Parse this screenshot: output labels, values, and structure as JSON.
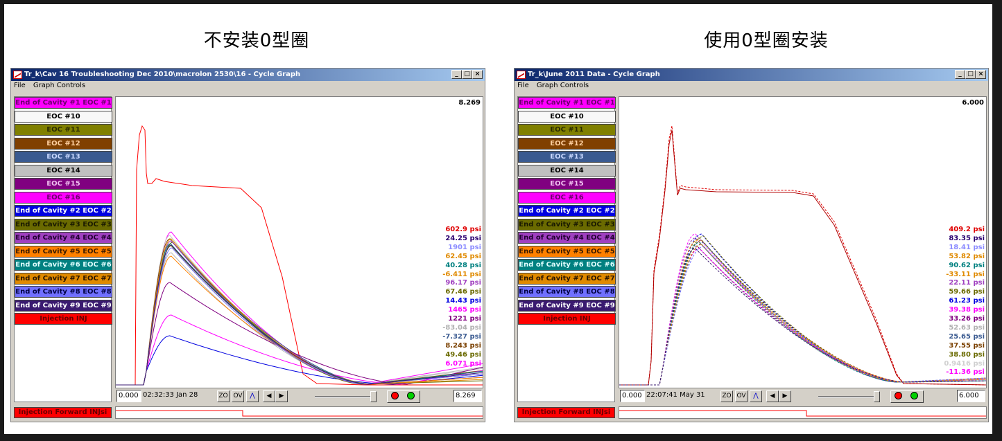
{
  "headings": {
    "left": "不安装0型圈",
    "right": "使用0型圈安装"
  },
  "windows": [
    {
      "title": "Tr_k\\Cav 16 Troubleshooting Dec 2010\\macrolon 2530\\16 - Cycle Graph",
      "menu": [
        "File",
        "Graph Controls"
      ],
      "max_value": "8.269",
      "min_field": "0.000",
      "timestamp": "02:32:33 Jan 28",
      "max_field": "8.269",
      "buttons": {
        "zoom": "ZO",
        "overview": "OV",
        "prev": "◀",
        "next": "▶"
      },
      "injection_legend": "Injection Forward INJsi",
      "readouts": [
        {
          "text": "602.9 psi",
          "color": "#e00000"
        },
        {
          "text": "24.25 psi",
          "color": "#2a0070"
        },
        {
          "text": "1901 psi",
          "color": "#8c8cff"
        },
        {
          "text": "62.45 psi",
          "color": "#e08a00"
        },
        {
          "text": "40.28 psi",
          "color": "#008080"
        },
        {
          "text": "-6.411 psi",
          "color": "#e08a00"
        },
        {
          "text": "96.17 psi",
          "color": "#a040c0"
        },
        {
          "text": "67.46 psi",
          "color": "#6a6a00"
        },
        {
          "text": "14.43 psi",
          "color": "#0000e0"
        },
        {
          "text": "1465 psi",
          "color": "#ff00ff"
        },
        {
          "text": "1221 psi",
          "color": "#800080"
        },
        {
          "text": "-83.04 psi",
          "color": "#b0b0b0"
        },
        {
          "text": "-7.327 psi",
          "color": "#3a5a90"
        },
        {
          "text": "8.243 psi",
          "color": "#7a4000"
        },
        {
          "text": "49.46 psi",
          "color": "#6a6a00"
        },
        {
          "text": "6.071 psi",
          "color": "#ff00ff"
        }
      ]
    },
    {
      "title": "Tr_k\\June 2011 Data - Cycle Graph",
      "menu": [
        "File",
        "Graph Controls"
      ],
      "max_value": "6.000",
      "min_field": "0.000",
      "timestamp": "22:07:41 May 31",
      "max_field": "6.000",
      "buttons": {
        "zoom": "ZO",
        "overview": "OV",
        "prev": "◀",
        "next": "▶"
      },
      "injection_legend": "Injection Forward INJsi",
      "readouts": [
        {
          "text": "409.2 psi",
          "color": "#e00000"
        },
        {
          "text": "83.35 psi",
          "color": "#2a0070"
        },
        {
          "text": "18.41 psi",
          "color": "#8c8cff"
        },
        {
          "text": "53.82 psi",
          "color": "#e08a00"
        },
        {
          "text": "90.62 psi",
          "color": "#008080"
        },
        {
          "text": "-33.11 psi",
          "color": "#e08a00"
        },
        {
          "text": "22.11 psi",
          "color": "#a040c0"
        },
        {
          "text": "59.66 psi",
          "color": "#6a6a00"
        },
        {
          "text": "61.23 psi",
          "color": "#0000e0"
        },
        {
          "text": "39.38 psi",
          "color": "#ff00ff"
        },
        {
          "text": "33.26 psi",
          "color": "#800080"
        },
        {
          "text": "52.63 psi",
          "color": "#b0b0b0"
        },
        {
          "text": "25.65 psi",
          "color": "#3a5a90"
        },
        {
          "text": "37.55 psi",
          "color": "#7a4000"
        },
        {
          "text": "38.80 psi",
          "color": "#6a6a00"
        },
        {
          "text": "0.9416 psi",
          "color": "#d0d0d0"
        },
        {
          "text": "-11.36 psi",
          "color": "#ff00ff"
        }
      ]
    }
  ],
  "legend": [
    {
      "label": "End of Cavity #1 EOC #1",
      "bg": "#ff00ff",
      "fg": "#6a006a"
    },
    {
      "label": "EOC #10",
      "bg": "#f8f8f8",
      "fg": "#000000"
    },
    {
      "label": "EOC #11",
      "bg": "#808000",
      "fg": "#2a2a00"
    },
    {
      "label": "EOC #12",
      "bg": "#804000",
      "fg": "#ffd0a0"
    },
    {
      "label": "EOC #13",
      "bg": "#3a5a90",
      "fg": "#c8d8ff"
    },
    {
      "label": "EOC #14",
      "bg": "#c0c0c0",
      "fg": "#000000"
    },
    {
      "label": "EOC #15",
      "bg": "#800080",
      "fg": "#f0c0f0"
    },
    {
      "label": "EOC #16",
      "bg": "#ff00ff",
      "fg": "#6a006a"
    },
    {
      "label": "End of Cavity #2 EOC #2",
      "bg": "#0000e0",
      "fg": "#ffffff"
    },
    {
      "label": "End of Cavity #3 EOC #3",
      "bg": "#6a6a00",
      "fg": "#1a1a00"
    },
    {
      "label": "End of Cavity #4 EOC #4",
      "bg": "#a040c0",
      "fg": "#200030"
    },
    {
      "label": "End of Cavity #5 EOC #5",
      "bg": "#ff8000",
      "fg": "#3a1a00"
    },
    {
      "label": "End of Cavity #6 EOC #6",
      "bg": "#008080",
      "fg": "#e0ffff"
    },
    {
      "label": "End of Cavity #7 EOC #7",
      "bg": "#e08a00",
      "fg": "#2a1500"
    },
    {
      "label": "End of Cavity #8 EOC #8",
      "bg": "#7070ff",
      "fg": "#000040"
    },
    {
      "label": "End of Cavity #9 EOC #9",
      "bg": "#3a1a70",
      "fg": "#ffffff"
    },
    {
      "label": "Injection INJ",
      "bg": "#ff0000",
      "fg": "#6a0000"
    }
  ]
}
